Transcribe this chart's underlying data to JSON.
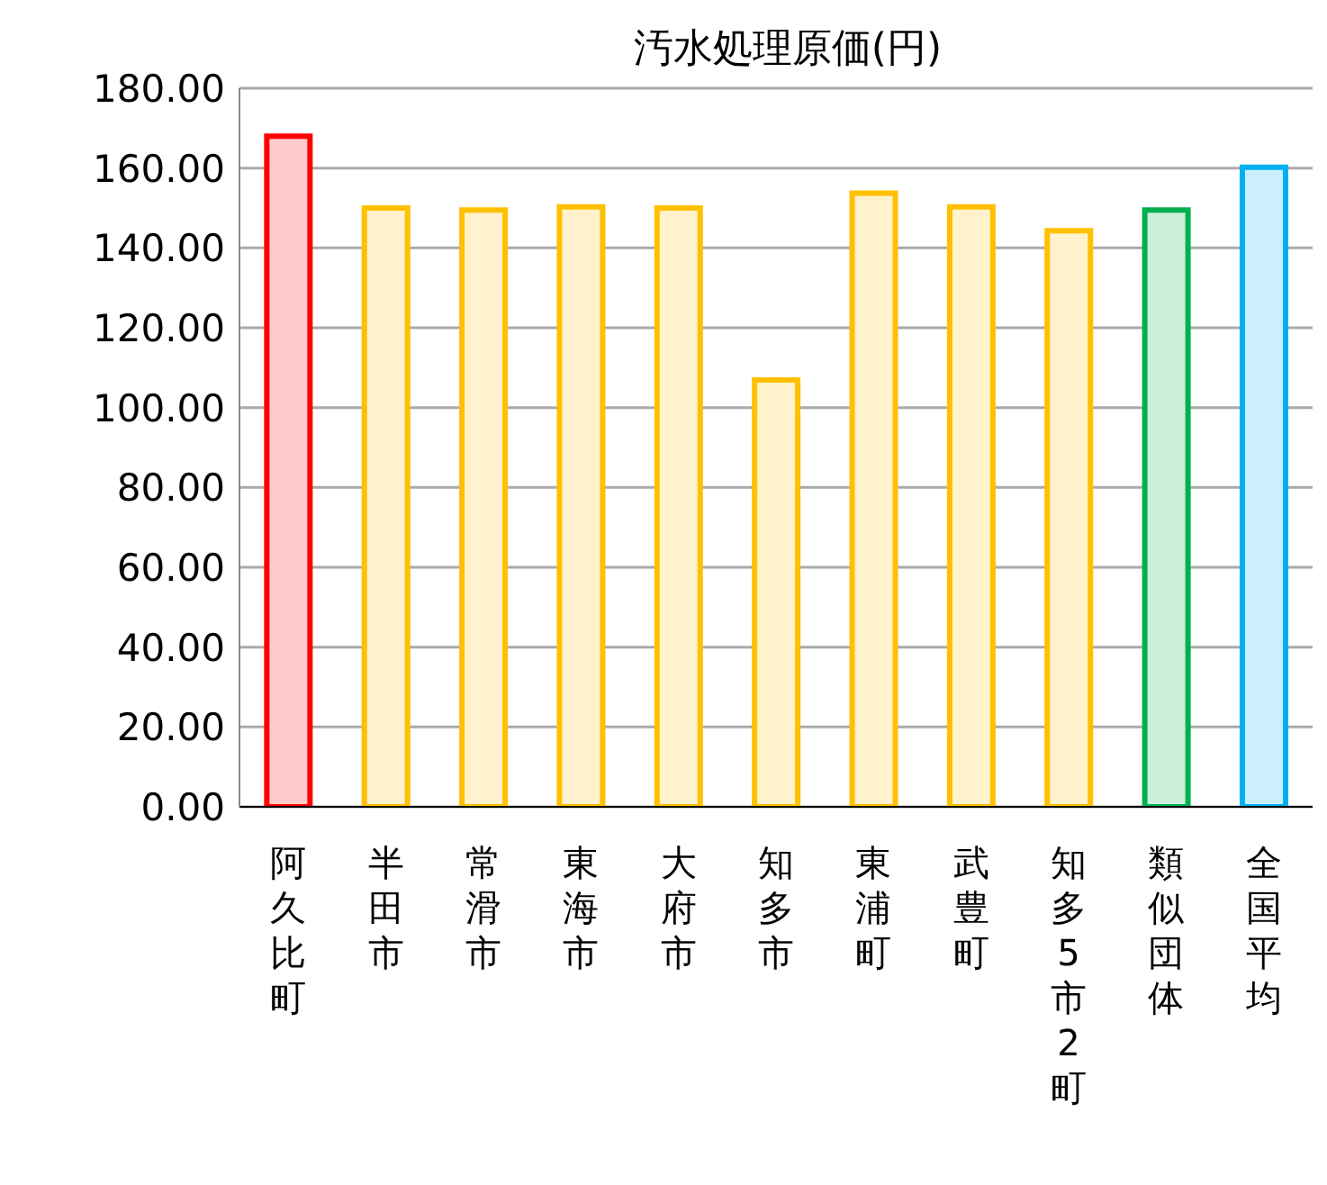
{
  "chart_data": {
    "type": "bar",
    "title": "汚水処理原価(円)",
    "categories": [
      "阿久比町",
      "半田市",
      "常滑市",
      "東海市",
      "大府市",
      "知多市",
      "東浦町",
      "武豊町",
      "知多5市2町",
      "類似団体",
      "全国平均"
    ],
    "values": [
      168,
      150,
      149.5,
      150.3,
      150,
      106.9,
      153.7,
      150.3,
      144.3,
      149.5,
      160.2
    ],
    "colors": [
      "#ff0000",
      "#ffc000",
      "#ffc000",
      "#ffc000",
      "#ffc000",
      "#ffc000",
      "#ffc000",
      "#ffc000",
      "#ffc000",
      "#00b050",
      "#00b0f0"
    ],
    "ylim": [
      0,
      180
    ],
    "yticks": [
      {
        "value": 0,
        "label": "0.00"
      },
      {
        "value": 20,
        "label": "20.00"
      },
      {
        "value": 40,
        "label": "40.00"
      },
      {
        "value": 60,
        "label": "60.00"
      },
      {
        "value": 80,
        "label": "80.00"
      },
      {
        "value": 100,
        "label": "100.00"
      },
      {
        "value": 120,
        "label": "120.00"
      },
      {
        "value": 140,
        "label": "140.00"
      },
      {
        "value": 160,
        "label": "160.00"
      },
      {
        "value": 180,
        "label": "180.00"
      }
    ],
    "grid": "y",
    "legend": false
  }
}
